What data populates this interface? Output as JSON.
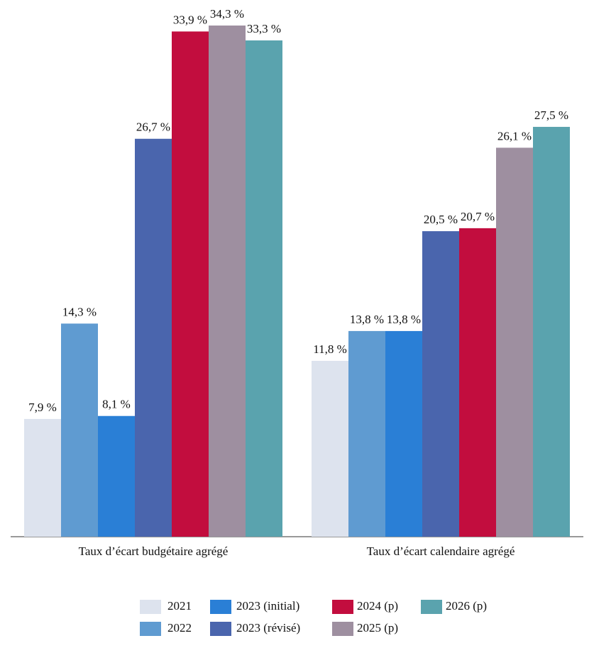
{
  "chart_data": {
    "type": "bar",
    "categories": [
      "Taux d’écart budgétaire agrégé",
      "Taux d’écart calendaire agrégé"
    ],
    "series": [
      {
        "name": "2021",
        "color": "#dde3ee",
        "values": [
          7.9,
          11.8
        ],
        "value_labels": [
          "7,9 %",
          "11,8 %"
        ]
      },
      {
        "name": "2022",
        "color": "#5f9bd1",
        "values": [
          14.3,
          13.8
        ],
        "value_labels": [
          "14,3 %",
          "13,8 %"
        ]
      },
      {
        "name": "2023 (initial)",
        "color": "#2a7fd6",
        "values": [
          8.1,
          13.8
        ],
        "value_labels": [
          "8,1 %",
          "13,8 %"
        ]
      },
      {
        "name": "2023 (révisé)",
        "color": "#4a65ad",
        "values": [
          26.7,
          20.5
        ],
        "value_labels": [
          "26,7 %",
          "20,5 %"
        ]
      },
      {
        "name": "2024 (p)",
        "color": "#c20d3e",
        "values": [
          33.9,
          20.7
        ],
        "value_labels": [
          "33,9 %",
          "20,7 %"
        ]
      },
      {
        "name": "2025 (p)",
        "color": "#9e8fa0",
        "values": [
          34.3,
          26.1
        ],
        "value_labels": [
          "34,3 %",
          "26,1 %"
        ]
      },
      {
        "name": "2026 (p)",
        "color": "#5aa3ae",
        "values": [
          33.3,
          27.5
        ],
        "value_labels": [
          "33,3 %",
          "27,5 %"
        ]
      }
    ],
    "legend": "bottom"
  }
}
